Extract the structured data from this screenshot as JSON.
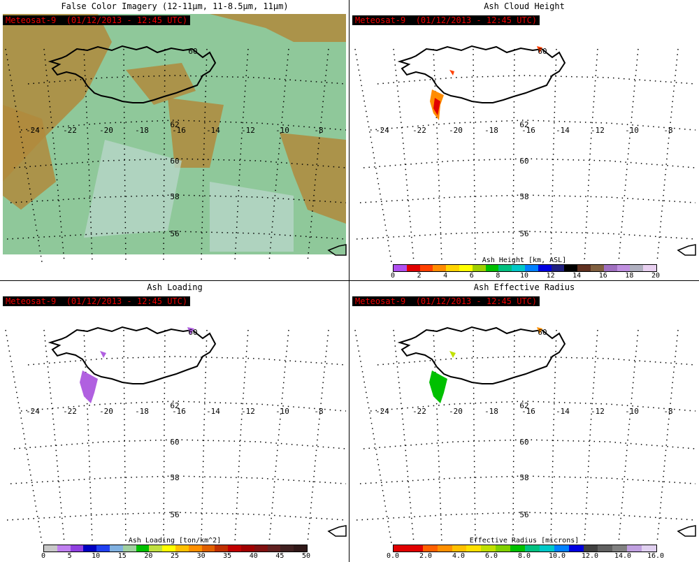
{
  "panels": [
    {
      "title": "False Color Imagery (12-11μm, 11-8.5μm, 11μm)",
      "badge": "Meteosat-9  (01/12/2013 - 12:45 UTC)",
      "feature": "false-color-imagery"
    },
    {
      "title": "Ash Cloud Height",
      "badge": "Meteosat-9  (01/12/2013 - 12:45 UTC)",
      "feature": "ash-height",
      "colorbar": {
        "title": "Ash Height [km, ASL]",
        "ticks": [
          "0",
          "2",
          "4",
          "6",
          "8",
          "10",
          "12",
          "14",
          "16",
          "18",
          "20"
        ],
        "colors": [
          "#b050f0",
          "#e00000",
          "#ff4000",
          "#ff8c00",
          "#ffd400",
          "#ffff00",
          "#a0d000",
          "#00c000",
          "#00c080",
          "#00c8c8",
          "#0080ff",
          "#0000e0",
          "#202080",
          "#000000",
          "#603020",
          "#806040",
          "#a070c0",
          "#c090e0",
          "#b0b0c0",
          "#e8d0f0"
        ]
      }
    },
    {
      "title": "Ash Loading",
      "badge": "Meteosat-9  (01/12/2013 - 12:45 UTC)",
      "feature": "ash-loading",
      "colorbar": {
        "title": "Ash Loading [ton/km^2]",
        "ticks": [
          "0",
          "5",
          "10",
          "15",
          "20",
          "25",
          "30",
          "35",
          "40",
          "45",
          "50"
        ],
        "colors": [
          "#c8c8c8",
          "#c080f0",
          "#9040e0",
          "#0000c0",
          "#2040f0",
          "#80b0e0",
          "#a0d0a0",
          "#00c000",
          "#c0e040",
          "#ffff00",
          "#ffc000",
          "#ff9000",
          "#e06000",
          "#c03000",
          "#c00000",
          "#a00000",
          "#801010",
          "#602020",
          "#402020",
          "#301818"
        ]
      }
    },
    {
      "title": "Ash Effective Radius",
      "badge": "Meteosat-9  (01/12/2013 - 12:45 UTC)",
      "feature": "ash-radius",
      "colorbar": {
        "title": "Effective Radius [microns]",
        "ticks": [
          "0.0",
          "2.0",
          "4.0",
          "6.0",
          "8.0",
          "10.0",
          "12.0",
          "14.0",
          "16.0"
        ],
        "colors": [
          "#e00000",
          "#e00000",
          "#ff6000",
          "#ff9000",
          "#ffc000",
          "#ffe000",
          "#c0e000",
          "#80d000",
          "#00c000",
          "#00c080",
          "#00c8c8",
          "#0080ff",
          "#0000e0",
          "#404040",
          "#606060",
          "#808080",
          "#c0a0e0",
          "#e0d0f0"
        ]
      }
    }
  ],
  "graticule": {
    "lon_labels": [
      "-24",
      "-22",
      "-20",
      "-18",
      "-16",
      "-14",
      "-12",
      "-10",
      "-8"
    ],
    "lat_labels": [
      "62",
      "60",
      "58",
      "56"
    ],
    "lat_label_top": "60"
  },
  "colors": {
    "badge_bg": "#000000",
    "badge_text": "#e00000"
  }
}
